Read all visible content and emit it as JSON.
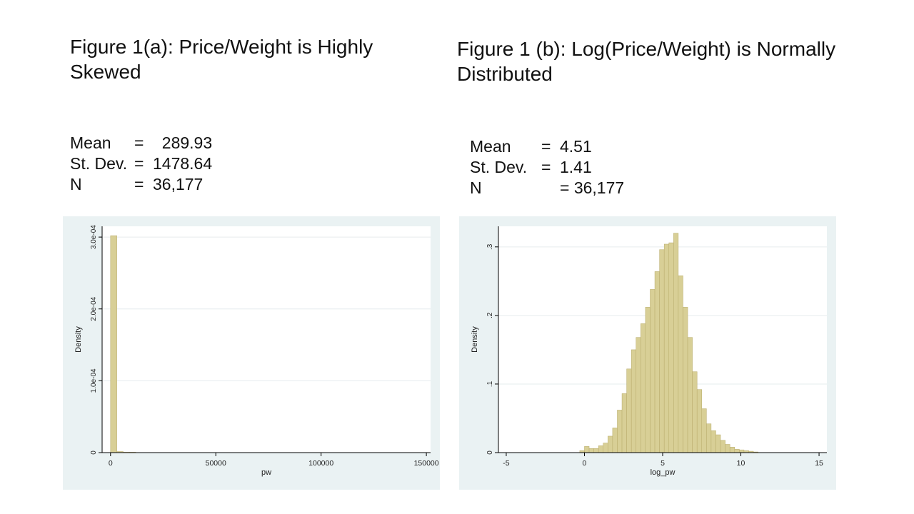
{
  "titles": {
    "a_bold": "Figure 1(a):",
    "a_rest": " Price/Weight is Highly Skewed",
    "b_bold": "Figure 1 (b):",
    "b_rest": " Log(Price/Weight) is Normally Distributed"
  },
  "stats_a": {
    "rows": [
      {
        "k": "Mean",
        "eq": "=",
        "v": "  289.93"
      },
      {
        "k": "St. Dev.",
        "eq": "=",
        "v": "1478.64"
      },
      {
        "k": "N",
        "eq": "=",
        "v": "36,177"
      }
    ]
  },
  "stats_b": {
    "rows": [
      {
        "k": "Mean",
        "eq": "=",
        "v": "4.51"
      },
      {
        "k": "St. Dev.",
        "eq": "=",
        "v": "1.41"
      },
      {
        "k": "N",
        "eq": "=",
        "v": "= 36,177"
      }
    ]
  },
  "colors": {
    "bar_fill": "#d8cf96",
    "bar_stroke": "#b8ab6a",
    "panel_bg": "#eaf2f3",
    "plot_bg": "#ffffff",
    "grid": "#e6ecee"
  },
  "chart_data": [
    {
      "type": "bar",
      "subtype": "histogram",
      "xlabel": "pw",
      "ylabel": "Density",
      "xlim": [
        -4000,
        152000
      ],
      "ylim": [
        0,
        0.000315
      ],
      "xticks": [
        0,
        50000,
        100000,
        150000
      ],
      "xtick_labels": [
        "0",
        "50000",
        "100000",
        "150000"
      ],
      "yticks": [
        0,
        0.0001,
        0.0002,
        0.0003
      ],
      "ytick_labels": [
        "0",
        "1.0e-04",
        "2.0e-04",
        "3.0e-04"
      ],
      "grid": true,
      "bin_width": 3000,
      "bin_start": 0,
      "values": [
        0.000302,
        1.5e-06,
        3e-07,
        1e-07
      ]
    },
    {
      "type": "bar",
      "subtype": "histogram",
      "xlabel": "log_pw",
      "ylabel": "Density",
      "xlim": [
        -5.5,
        15.5
      ],
      "ylim": [
        0,
        0.33
      ],
      "xticks": [
        -5,
        0,
        5,
        10,
        15
      ],
      "xtick_labels": [
        "-5",
        "0",
        "5",
        "10",
        "15"
      ],
      "yticks": [
        0,
        0.1,
        0.2,
        0.3
      ],
      "ytick_labels": [
        "0",
        ".1",
        ".2",
        ".3"
      ],
      "grid": true,
      "bin_width": 0.3,
      "bin_start": -0.3,
      "values": [
        0.003,
        0.009,
        0.006,
        0.006,
        0.01,
        0.014,
        0.024,
        0.036,
        0.062,
        0.086,
        0.122,
        0.15,
        0.168,
        0.188,
        0.212,
        0.238,
        0.264,
        0.296,
        0.304,
        0.306,
        0.32,
        0.258,
        0.212,
        0.168,
        0.118,
        0.092,
        0.064,
        0.042,
        0.032,
        0.026,
        0.018,
        0.012,
        0.008,
        0.005,
        0.004,
        0.003,
        0.002,
        0.001
      ]
    }
  ]
}
